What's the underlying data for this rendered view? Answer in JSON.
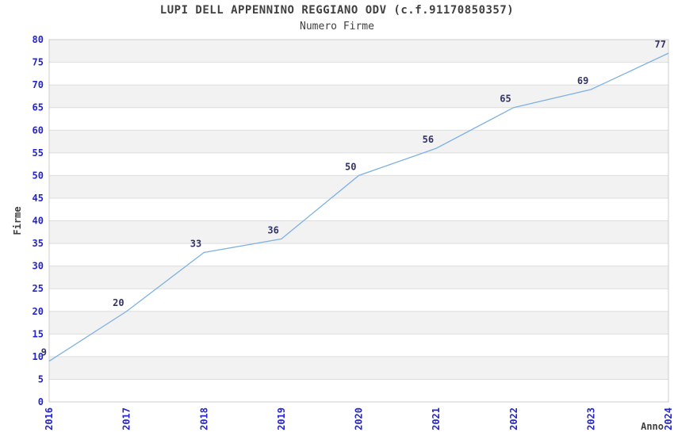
{
  "chart_data": {
    "type": "line",
    "title": "LUPI DELL APPENNINO REGGIANO ODV (c.f.91170850357)",
    "subtitle": "Numero Firme",
    "xlabel": "Anno",
    "ylabel": "Firme",
    "x": [
      2016,
      2017,
      2018,
      2019,
      2020,
      2021,
      2022,
      2023,
      2024
    ],
    "values": [
      9,
      20,
      33,
      36,
      50,
      56,
      65,
      69,
      77
    ],
    "ylim": [
      0,
      80
    ],
    "ytick_step": 5,
    "grid": "horizontal-gridlines-with-alternating-bands",
    "legend": "none",
    "colors": {
      "line": "#7eb1e3",
      "tick_label": "#2424cc",
      "data_label": "#333366",
      "band_fill": "#f2f2f2",
      "gridline": "#dddddd",
      "plot_border": "#cccccc",
      "title_text": "#404040",
      "background": "#ffffff"
    }
  }
}
